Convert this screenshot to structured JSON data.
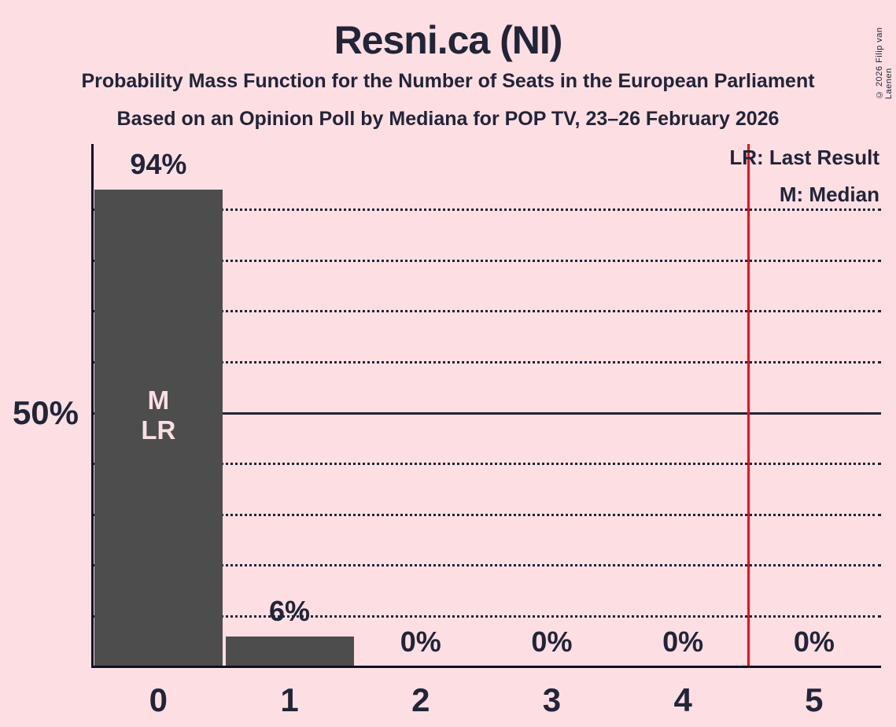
{
  "title": "Resni.ca (NI)",
  "subtitles": [
    "Probability Mass Function for the Number of Seats in the European Parliament",
    "Based on an Opinion Poll by Mediana for POP TV, 23–26 February 2026"
  ],
  "legend": {
    "last_result": "LR: Last Result",
    "median": "M: Median"
  },
  "copyright": "© 2026 Filip van Laenen",
  "y_axis_label": "50%",
  "colors": {
    "background": "#FDDFE3",
    "bar": "#4D4D4D",
    "text": "#222438",
    "axis": "#0C1022",
    "bar_label": "#FDDFE3",
    "last_result_line": "#F2051A"
  },
  "chart_data": {
    "type": "bar",
    "title": "Resni.ca (NI)",
    "categories": [
      "0",
      "1",
      "2",
      "3",
      "4",
      "5"
    ],
    "values": [
      94,
      6,
      0,
      0,
      0,
      0
    ],
    "value_labels": [
      "94%",
      "6%",
      "0%",
      "0%",
      "0%",
      "0%"
    ],
    "unit": "percent",
    "ylim": [
      0,
      103
    ],
    "y_tick_labels": [
      {
        "value": 50,
        "label": "50%"
      }
    ],
    "y_solid_gridline": 50,
    "y_dotted_gridlines": [
      10,
      20,
      30,
      40,
      60,
      70,
      80,
      90
    ],
    "bar_annotations": [
      {
        "category_index": 0,
        "lines": [
          "M",
          "LR"
        ]
      }
    ],
    "last_result_vline_x": 4.5,
    "grid": "dotted-horizontal",
    "legend_position": "top-right"
  }
}
